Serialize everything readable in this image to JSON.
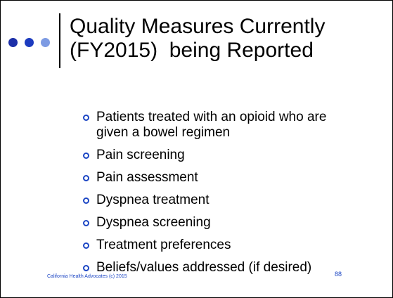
{
  "title_lines": [
    "Quality Measures Currently",
    "(FY2015)  being Reported"
  ],
  "bullets": [
    "Patients treated with an opioid who are given a bowel regimen",
    "Pain screening",
    "Pain assessment",
    "Dyspnea treatment",
    "Dyspnea screening",
    "Treatment preferences",
    "Beliefs/values addressed (if desired)"
  ],
  "footer": "California Health Advocates (c) 2015",
  "page_number": "88"
}
